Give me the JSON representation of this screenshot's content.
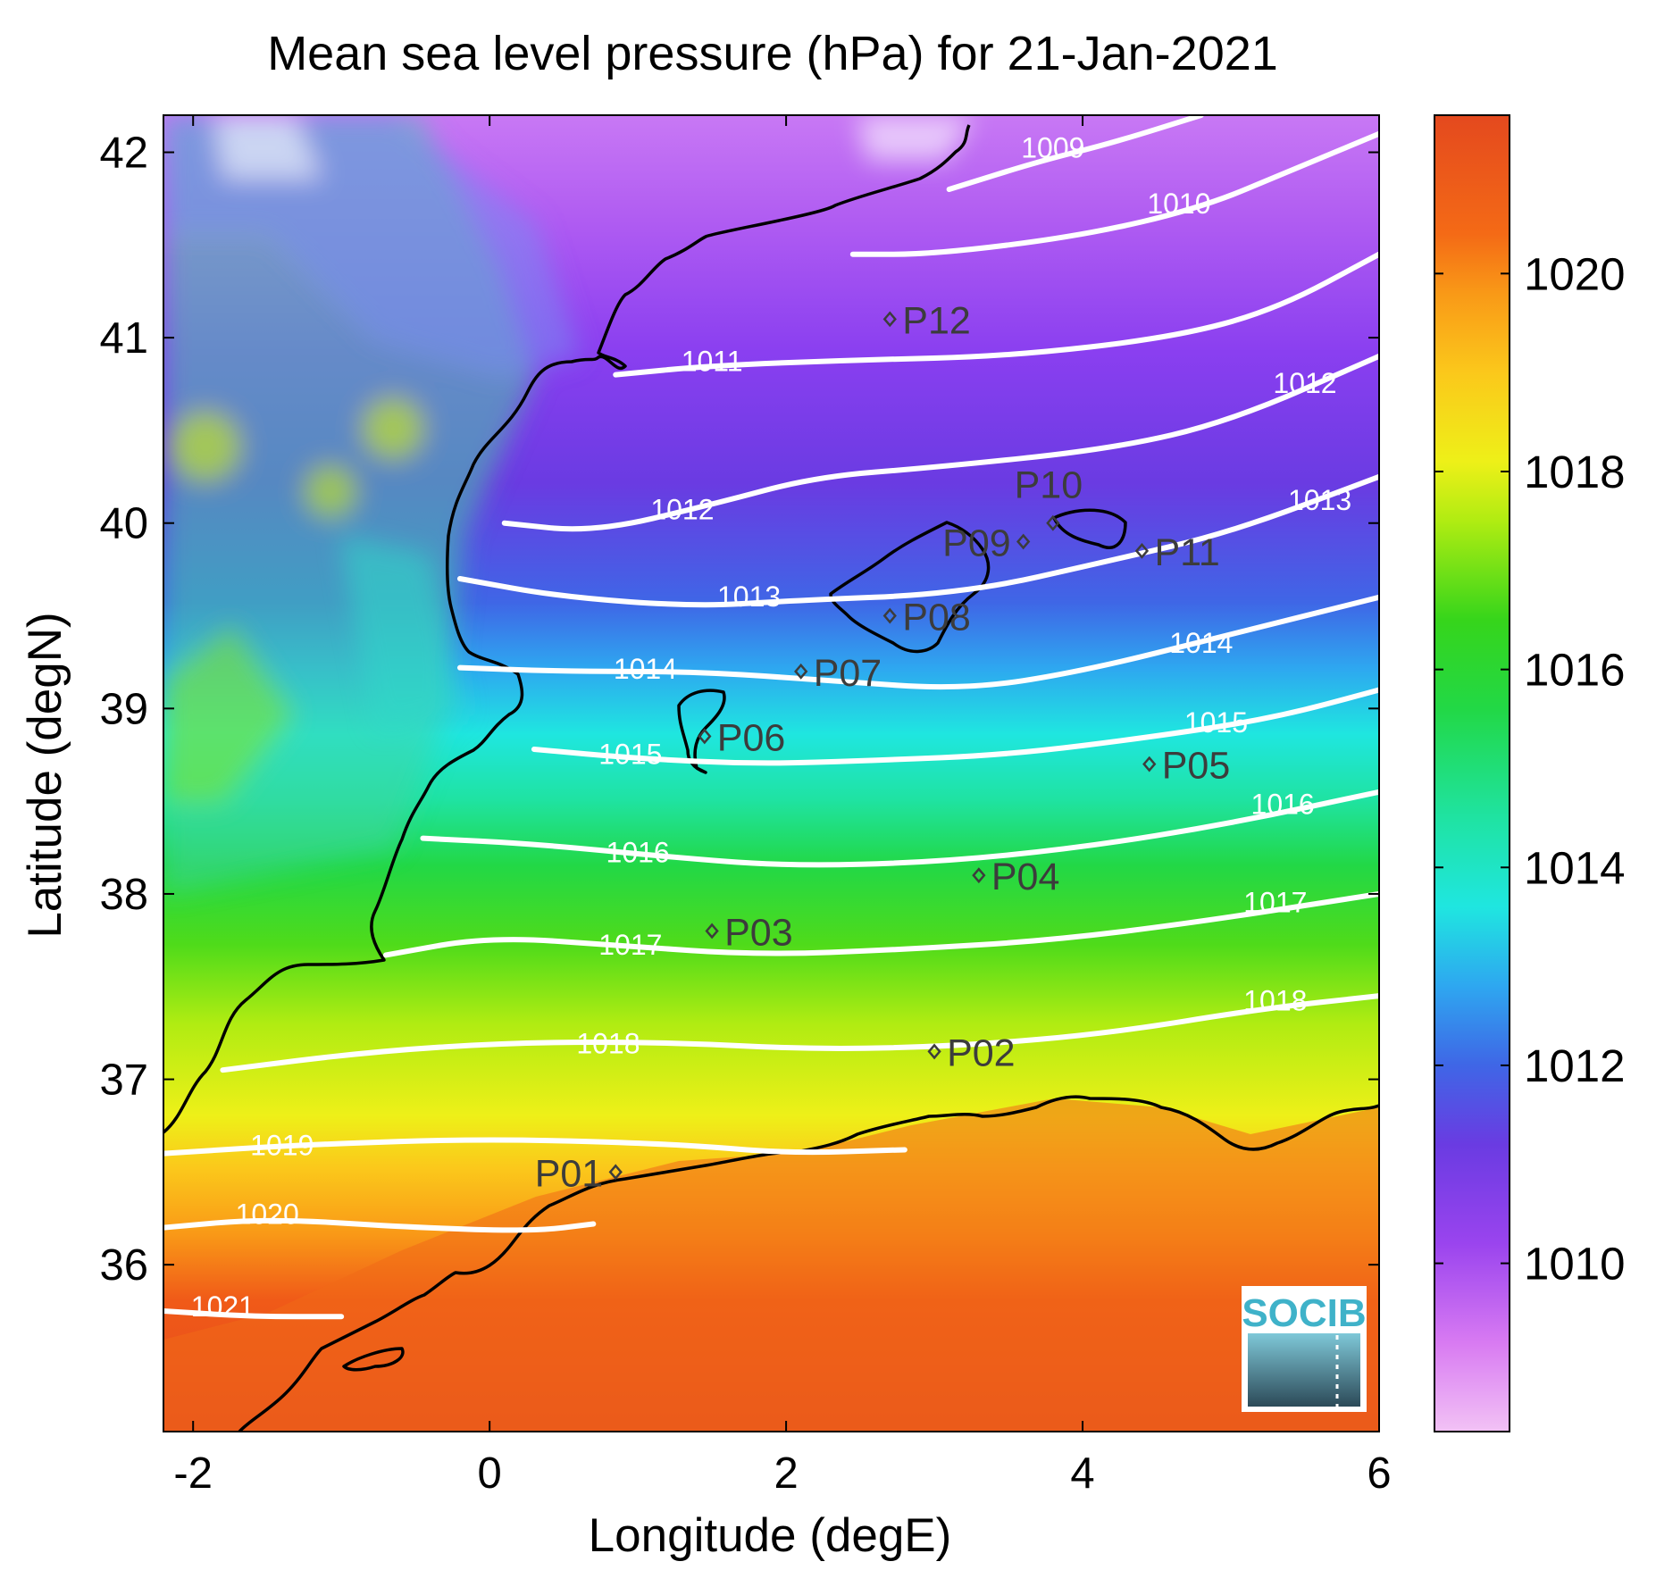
{
  "chart_data": {
    "type": "heatmap",
    "title": "Mean sea level pressure (hPa) for 21-Jan-2021",
    "xlabel": "Longitude (degE)",
    "ylabel": "Latitude (degN)",
    "xlim": [
      -2.2,
      6.0
    ],
    "ylim": [
      35.1,
      42.2
    ],
    "x_ticks": [
      "-2",
      "0",
      "2",
      "4",
      "6"
    ],
    "y_ticks": [
      "36",
      "37",
      "38",
      "39",
      "40",
      "41",
      "42"
    ],
    "colorbar": {
      "range": [
        1008.3,
        1021.6
      ],
      "ticks": [
        "1010",
        "1012",
        "1014",
        "1016",
        "1018",
        "1020"
      ],
      "colors": [
        {
          "v": 1008.3,
          "c": "#f2c2f5"
        },
        {
          "v": 1009.2,
          "c": "#d87af2"
        },
        {
          "v": 1010.2,
          "c": "#9a44ee"
        },
        {
          "v": 1011.2,
          "c": "#6a3be2"
        },
        {
          "v": 1012.0,
          "c": "#3f66e6"
        },
        {
          "v": 1012.8,
          "c": "#2ea7f0"
        },
        {
          "v": 1013.6,
          "c": "#1fe6e0"
        },
        {
          "v": 1014.5,
          "c": "#1fe3a2"
        },
        {
          "v": 1015.6,
          "c": "#22d846"
        },
        {
          "v": 1016.5,
          "c": "#36d51b"
        },
        {
          "v": 1017.5,
          "c": "#b0ec12"
        },
        {
          "v": 1018.1,
          "c": "#eef018"
        },
        {
          "v": 1019.0,
          "c": "#fbc81b"
        },
        {
          "v": 1019.8,
          "c": "#f99917"
        },
        {
          "v": 1020.4,
          "c": "#f46a16"
        },
        {
          "v": 1021.6,
          "c": "#e4491e"
        }
      ]
    },
    "contours": [
      {
        "label": "1009",
        "label_at": [
          3.8,
          42.0
        ],
        "points": [
          [
            3.1,
            41.8
          ],
          [
            3.7,
            41.95
          ],
          [
            4.2,
            42.05
          ],
          [
            4.8,
            42.2
          ]
        ]
      },
      {
        "label": "1010",
        "label_at": [
          4.65,
          41.7
        ],
        "points": [
          [
            2.45,
            41.45
          ],
          [
            3.0,
            41.45
          ],
          [
            4.0,
            41.55
          ],
          [
            4.8,
            41.7
          ],
          [
            5.4,
            41.9
          ],
          [
            6.0,
            42.1
          ]
        ]
      },
      {
        "label": "1011",
        "label_at": [
          1.5,
          40.85
        ],
        "points": [
          [
            0.85,
            40.8
          ],
          [
            1.5,
            40.85
          ],
          [
            2.5,
            40.88
          ],
          [
            3.5,
            40.9
          ],
          [
            4.6,
            41.0
          ],
          [
            5.3,
            41.15
          ],
          [
            6.0,
            41.45
          ]
        ]
      },
      {
        "label": "1012",
        "label_at": [
          1.3,
          40.05
        ],
        "points": [
          [
            0.1,
            40.0
          ],
          [
            0.7,
            39.95
          ],
          [
            1.5,
            40.1
          ],
          [
            2.2,
            40.25
          ],
          [
            3.0,
            40.3
          ],
          [
            4.2,
            40.4
          ],
          [
            5.0,
            40.55
          ],
          [
            6.0,
            40.9
          ]
        ]
      },
      {
        "label": "1012",
        "label_at": [
          5.5,
          40.73
        ],
        "points": []
      },
      {
        "label": "1013",
        "label_at": [
          1.75,
          39.58
        ],
        "points": [
          [
            -0.2,
            39.7
          ],
          [
            0.5,
            39.6
          ],
          [
            1.4,
            39.55
          ],
          [
            2.0,
            39.58
          ],
          [
            3.2,
            39.62
          ],
          [
            4.2,
            39.8
          ],
          [
            5.0,
            39.95
          ],
          [
            6.0,
            40.25
          ]
        ]
      },
      {
        "label": "1013",
        "label_at": [
          5.6,
          40.1
        ],
        "points": []
      },
      {
        "label": "1014",
        "label_at": [
          1.05,
          39.19
        ],
        "points": [
          [
            -0.2,
            39.22
          ],
          [
            0.5,
            39.2
          ],
          [
            1.4,
            39.2
          ],
          [
            2.3,
            39.15
          ],
          [
            3.2,
            39.1
          ],
          [
            4.0,
            39.2
          ],
          [
            5.0,
            39.4
          ],
          [
            6.0,
            39.6
          ]
        ]
      },
      {
        "label": "1014",
        "label_at": [
          4.8,
          39.33
        ],
        "points": []
      },
      {
        "label": "1015",
        "label_at": [
          0.95,
          38.73
        ],
        "points": [
          [
            0.3,
            38.78
          ],
          [
            1.0,
            38.73
          ],
          [
            1.8,
            38.7
          ],
          [
            2.6,
            38.72
          ],
          [
            3.5,
            38.75
          ],
          [
            4.5,
            38.85
          ],
          [
            5.3,
            38.95
          ],
          [
            6.0,
            39.1
          ]
        ]
      },
      {
        "label": "1015",
        "label_at": [
          4.9,
          38.9
        ],
        "points": []
      },
      {
        "label": "1016",
        "label_at": [
          1.0,
          38.2
        ],
        "points": [
          [
            -0.45,
            38.3
          ],
          [
            0.3,
            38.27
          ],
          [
            1.2,
            38.2
          ],
          [
            2.0,
            38.15
          ],
          [
            3.0,
            38.17
          ],
          [
            4.0,
            38.25
          ],
          [
            5.0,
            38.38
          ],
          [
            6.0,
            38.55
          ]
        ]
      },
      {
        "label": "1016",
        "label_at": [
          5.35,
          38.46
        ],
        "points": []
      },
      {
        "label": "1017",
        "label_at": [
          0.95,
          37.7
        ],
        "points": [
          [
            -0.7,
            37.67
          ],
          [
            0.0,
            37.77
          ],
          [
            0.9,
            37.72
          ],
          [
            1.8,
            37.67
          ],
          [
            2.8,
            37.7
          ],
          [
            3.8,
            37.75
          ],
          [
            4.8,
            37.85
          ],
          [
            6.0,
            38.0
          ]
        ]
      },
      {
        "label": "1017",
        "label_at": [
          5.3,
          37.93
        ],
        "points": []
      },
      {
        "label": "1018",
        "label_at": [
          0.8,
          37.17
        ],
        "points": [
          [
            -1.8,
            37.05
          ],
          [
            -0.8,
            37.15
          ],
          [
            0.2,
            37.2
          ],
          [
            1.2,
            37.2
          ],
          [
            2.2,
            37.16
          ],
          [
            3.2,
            37.18
          ],
          [
            4.2,
            37.25
          ],
          [
            5.2,
            37.38
          ],
          [
            6.0,
            37.45
          ]
        ]
      },
      {
        "label": "1018",
        "label_at": [
          5.3,
          37.4
        ],
        "points": []
      },
      {
        "label": "1019",
        "label_at": [
          -1.4,
          36.62
        ],
        "points": [
          [
            -2.2,
            36.6
          ],
          [
            -1.2,
            36.65
          ],
          [
            0.0,
            36.68
          ],
          [
            1.3,
            36.65
          ],
          [
            2.0,
            36.6
          ],
          [
            2.8,
            36.62
          ]
        ]
      },
      {
        "label": "1020",
        "label_at": [
          -1.5,
          36.25
        ],
        "points": [
          [
            -2.2,
            36.2
          ],
          [
            -1.5,
            36.25
          ],
          [
            -0.5,
            36.2
          ],
          [
            0.3,
            36.18
          ],
          [
            0.7,
            36.22
          ]
        ]
      },
      {
        "label": "1021",
        "label_at": [
          -1.8,
          35.75
        ],
        "points": [
          [
            -2.2,
            35.75
          ],
          [
            -1.6,
            35.72
          ],
          [
            -1.0,
            35.72
          ]
        ]
      }
    ],
    "stations": [
      {
        "name": "P01",
        "lon": 0.85,
        "lat": 36.5,
        "label_side": "left"
      },
      {
        "name": "P02",
        "lon": 3.0,
        "lat": 37.15,
        "label_side": "right"
      },
      {
        "name": "P03",
        "lon": 1.5,
        "lat": 37.8,
        "label_side": "right"
      },
      {
        "name": "P04",
        "lon": 3.3,
        "lat": 38.1,
        "label_side": "right"
      },
      {
        "name": "P05",
        "lon": 4.45,
        "lat": 38.7,
        "label_side": "right"
      },
      {
        "name": "P06",
        "lon": 1.45,
        "lat": 38.85,
        "label_side": "right"
      },
      {
        "name": "P07",
        "lon": 2.1,
        "lat": 39.2,
        "label_side": "right"
      },
      {
        "name": "P08",
        "lon": 2.7,
        "lat": 39.5,
        "label_side": "right"
      },
      {
        "name": "P09",
        "lon": 3.6,
        "lat": 39.9,
        "label_side": "left"
      },
      {
        "name": "P10",
        "lon": 3.8,
        "lat": 40.0,
        "label_side": "above"
      },
      {
        "name": "P11",
        "lon": 4.4,
        "lat": 39.85,
        "label_side": "right"
      },
      {
        "name": "P12",
        "lon": 2.7,
        "lat": 41.1,
        "label_side": "right"
      }
    ]
  },
  "logo": {
    "text": "SOCIB"
  }
}
